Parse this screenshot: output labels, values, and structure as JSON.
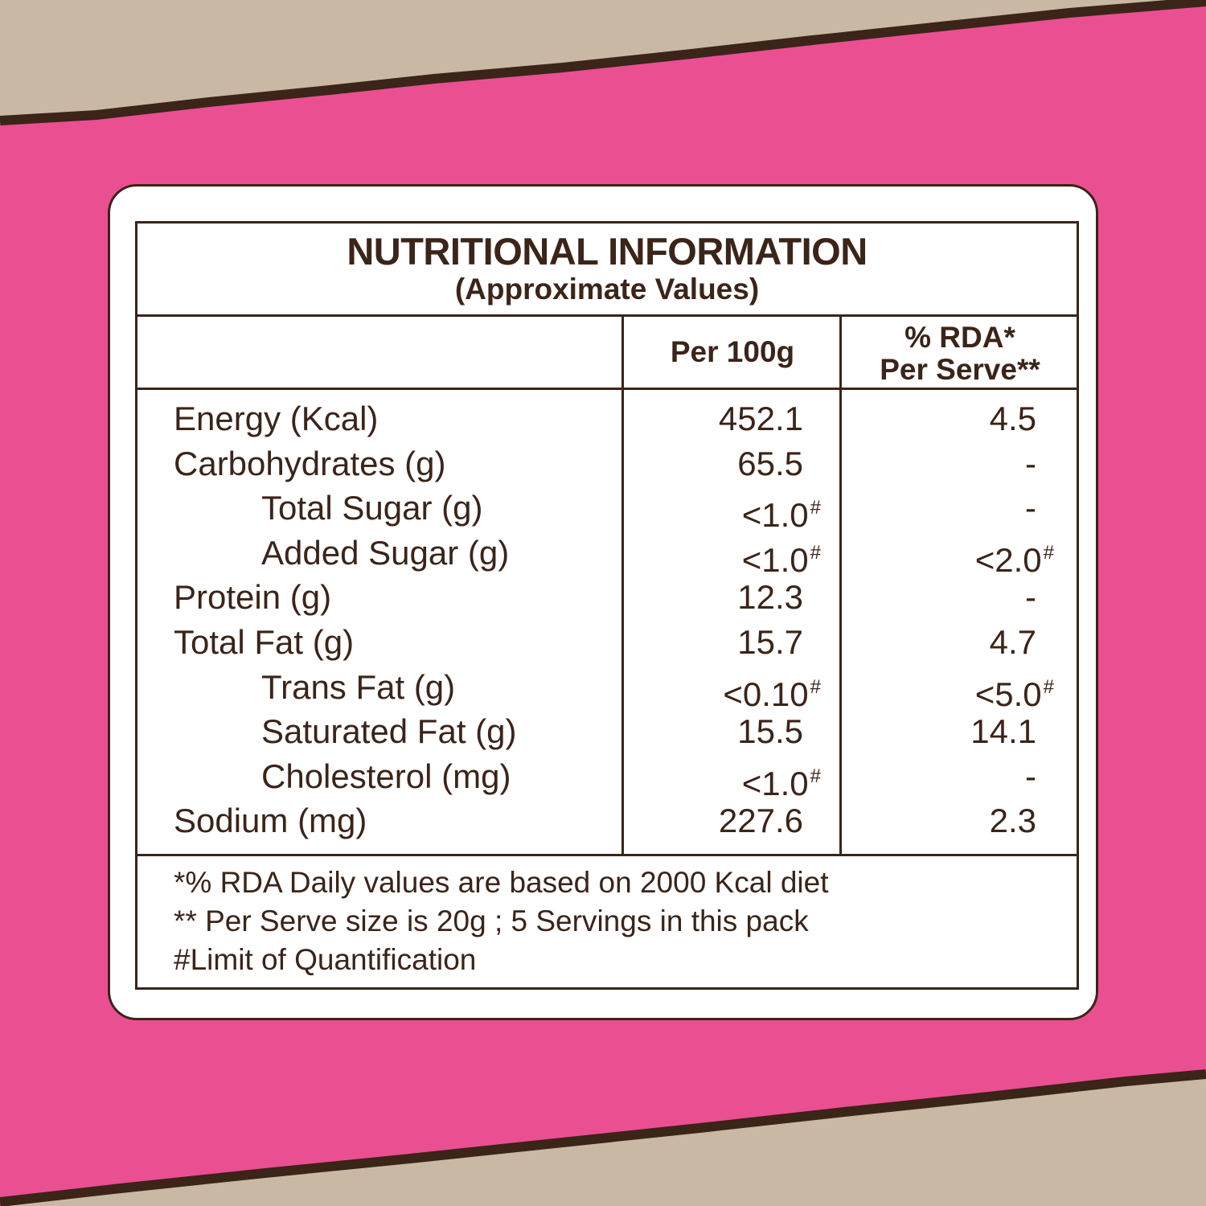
{
  "colors": {
    "pink": "#ea4f92",
    "brown": "#3b2418",
    "kraft": "#c9b8a4",
    "card": "#ffffff"
  },
  "table": {
    "title": "NUTRITIONAL INFORMATION",
    "subtitle": "(Approximate Values)",
    "col_per100": "Per 100g",
    "col_rda_line1": "% RDA*",
    "col_rda_line2": "Per Serve**",
    "rows": [
      {
        "nutrient": "Energy (Kcal)",
        "per100": "452.1",
        "per100_mark": "",
        "rda": "4.5",
        "rda_mark": ""
      },
      {
        "nutrient": "Carbohydrates (g)",
        "per100": "65.5",
        "per100_mark": "",
        "rda": "-",
        "rda_mark": ""
      },
      {
        "nutrient": "Total Sugar (g)",
        "per100": "<1.0",
        "per100_mark": "#",
        "rda": "-",
        "rda_mark": ""
      },
      {
        "nutrient": "Added Sugar (g)",
        "per100": "<1.0",
        "per100_mark": "#",
        "rda": "<2.0",
        "rda_mark": "#"
      },
      {
        "nutrient": "Protein (g)",
        "per100": "12.3",
        "per100_mark": "",
        "rda": "-",
        "rda_mark": ""
      },
      {
        "nutrient": "Total Fat (g)",
        "per100": "15.7",
        "per100_mark": "",
        "rda": "4.7",
        "rda_mark": ""
      },
      {
        "nutrient": "Trans Fat (g)",
        "per100": "<0.10",
        "per100_mark": "#",
        "rda": "<5.0",
        "rda_mark": "#"
      },
      {
        "nutrient": "Saturated Fat (g)",
        "per100": "15.5",
        "per100_mark": "",
        "rda": "14.1",
        "rda_mark": ""
      },
      {
        "nutrient": "Cholesterol (mg)",
        "per100": "<1.0",
        "per100_mark": "#",
        "rda": "-",
        "rda_mark": ""
      },
      {
        "nutrient": "Sodium (mg)",
        "per100": "227.6",
        "per100_mark": "",
        "rda": "2.3",
        "rda_mark": ""
      }
    ],
    "footnotes": [
      "*% RDA Daily values are based on 2000 Kcal diet",
      "** Per Serve size is 20g ; 5 Servings in this pack",
      "#Limit of Quantification"
    ]
  }
}
